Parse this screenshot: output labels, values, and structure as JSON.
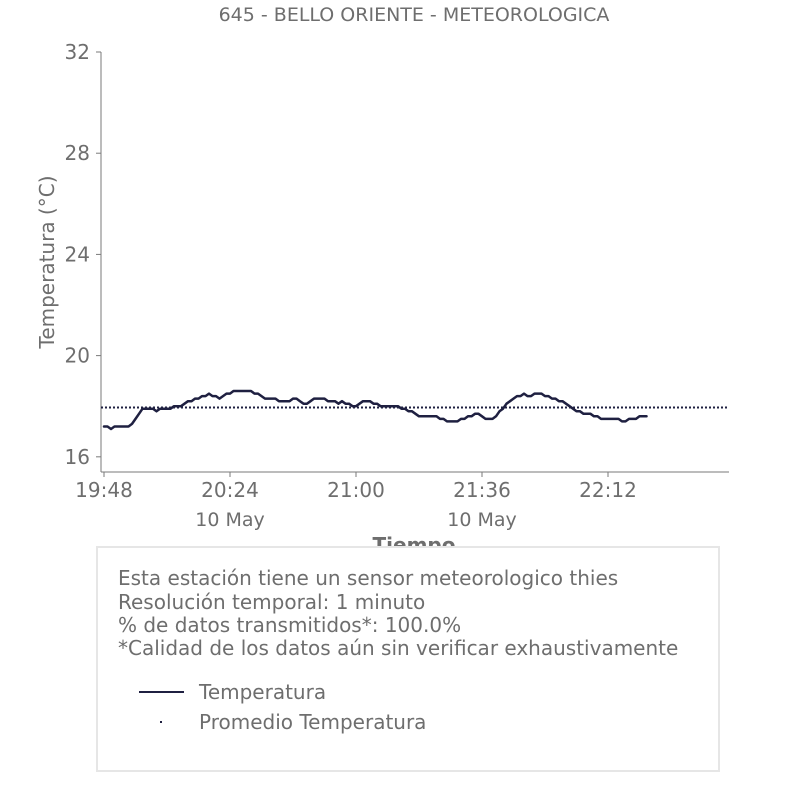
{
  "chart_data": {
    "type": "line",
    "title": "645 - BELLO ORIENTE - METEOROLOGICA",
    "xlabel": "Tiempo",
    "ylabel": "Temperatura (°C)",
    "ylim": [
      15.4,
      32
    ],
    "yticks": [
      16,
      20,
      24,
      28,
      32
    ],
    "xlim_minutes": [
      0,
      179
    ],
    "xticks": [
      {
        "minute": 0,
        "label": "19:48",
        "sublabel": ""
      },
      {
        "minute": 36,
        "label": "20:24",
        "sublabel": "10 May"
      },
      {
        "minute": 72,
        "label": "21:00",
        "sublabel": ""
      },
      {
        "minute": 108,
        "label": "21:36",
        "sublabel": "10 May"
      },
      {
        "minute": 144,
        "label": "22:12",
        "sublabel": ""
      }
    ],
    "grid": false,
    "series": [
      {
        "name": "Temperatura",
        "color": "#1f2041",
        "style": "solid",
        "x_start": "19:48",
        "x_step_minutes": 1,
        "values": [
          17.2,
          17.2,
          17.1,
          17.2,
          17.2,
          17.2,
          17.2,
          17.2,
          17.3,
          17.5,
          17.7,
          17.9,
          17.9,
          17.9,
          17.9,
          17.8,
          17.9,
          17.9,
          17.9,
          17.9,
          18.0,
          18.0,
          18.0,
          18.1,
          18.2,
          18.2,
          18.3,
          18.3,
          18.4,
          18.4,
          18.5,
          18.4,
          18.4,
          18.3,
          18.4,
          18.5,
          18.5,
          18.6,
          18.6,
          18.6,
          18.6,
          18.6,
          18.6,
          18.5,
          18.5,
          18.4,
          18.3,
          18.3,
          18.3,
          18.3,
          18.2,
          18.2,
          18.2,
          18.2,
          18.3,
          18.3,
          18.2,
          18.1,
          18.1,
          18.2,
          18.3,
          18.3,
          18.3,
          18.3,
          18.2,
          18.2,
          18.2,
          18.1,
          18.2,
          18.1,
          18.1,
          18.0,
          18.0,
          18.1,
          18.2,
          18.2,
          18.2,
          18.1,
          18.1,
          18.0,
          18.0,
          18.0,
          18.0,
          18.0,
          18.0,
          17.9,
          17.9,
          17.8,
          17.8,
          17.7,
          17.6,
          17.6,
          17.6,
          17.6,
          17.6,
          17.6,
          17.5,
          17.5,
          17.4,
          17.4,
          17.4,
          17.4,
          17.5,
          17.5,
          17.6,
          17.6,
          17.7,
          17.7,
          17.6,
          17.5,
          17.5,
          17.5,
          17.6,
          17.8,
          17.9,
          18.1,
          18.2,
          18.3,
          18.4,
          18.4,
          18.5,
          18.4,
          18.4,
          18.5,
          18.5,
          18.5,
          18.4,
          18.4,
          18.3,
          18.3,
          18.2,
          18.2,
          18.1,
          18.0,
          17.9,
          17.8,
          17.8,
          17.7,
          17.7,
          17.7,
          17.6,
          17.6,
          17.5,
          17.5,
          17.5,
          17.5,
          17.5,
          17.5,
          17.4,
          17.4,
          17.5,
          17.5,
          17.5,
          17.6,
          17.6,
          17.6
        ]
      },
      {
        "name": "Promedio Temperatura",
        "color": "#1f2041",
        "style": "dotted",
        "constant": 17.95
      }
    ]
  },
  "info": {
    "line1": "Esta estación tiene un sensor meteorologico thies",
    "line2": "Resolución temporal: 1 minuto",
    "line3": "% de datos transmitidos*: 100.0%",
    "line4": "*Calidad de los datos aún sin verificar exhaustivamente"
  },
  "legend": {
    "item1": "Temperatura",
    "item2": "Promedio Temperatura"
  }
}
